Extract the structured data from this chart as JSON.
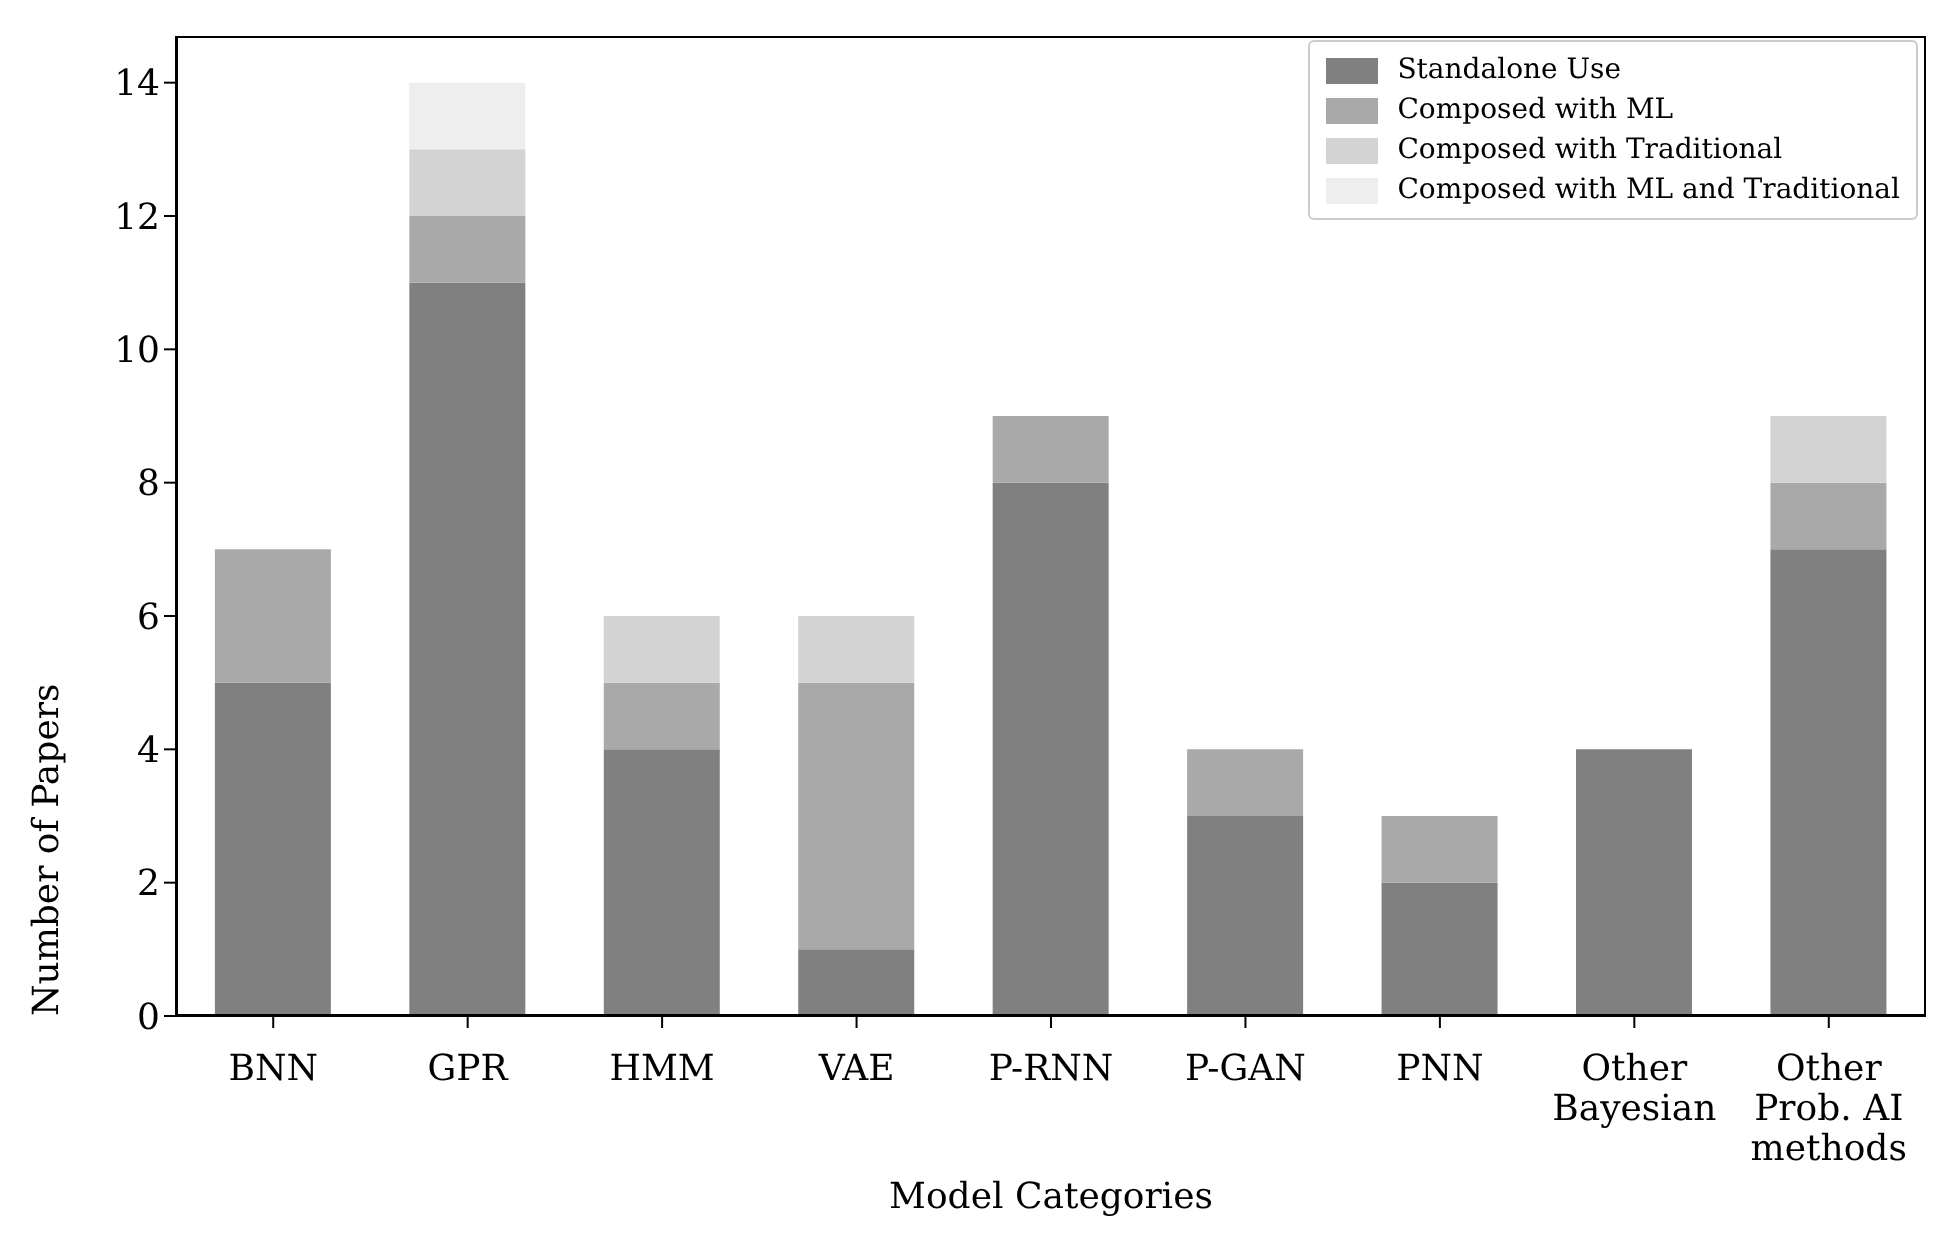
{
  "chart_data": {
    "type": "bar",
    "stacked": true,
    "xlabel": "Model Categories",
    "ylabel": "Number of Papers",
    "categories": [
      "BNN",
      "GPR",
      "HMM",
      "VAE",
      "P-RNN",
      "P-GAN",
      "PNN",
      "Other\nBayesian",
      "Other\nProb. AI\nmethods"
    ],
    "series": [
      {
        "name": "Standalone Use",
        "color": "#808080",
        "values": [
          5,
          11,
          4,
          1,
          8,
          3,
          2,
          4,
          7
        ]
      },
      {
        "name": "Composed with ML",
        "color": "#a9a9a9",
        "values": [
          2,
          1,
          1,
          4,
          1,
          1,
          1,
          0,
          1
        ]
      },
      {
        "name": "Composed with Traditional",
        "color": "#d3d3d3",
        "values": [
          0,
          1,
          1,
          1,
          0,
          0,
          0,
          0,
          1
        ]
      },
      {
        "name": "Composed with ML and Traditional",
        "color": "#eeeeee",
        "values": [
          0,
          1,
          0,
          0,
          0,
          0,
          0,
          0,
          0
        ]
      }
    ],
    "ylim": [
      0,
      14.7
    ],
    "yticks": [
      0,
      2,
      4,
      6,
      8,
      10,
      12,
      14
    ],
    "grid": false,
    "legend": "top right"
  }
}
